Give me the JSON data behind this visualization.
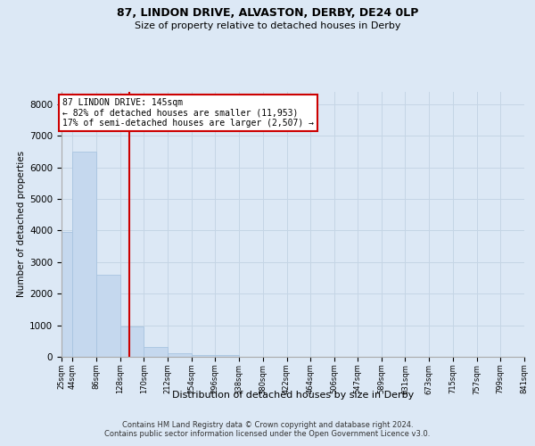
{
  "title1": "87, LINDON DRIVE, ALVASTON, DERBY, DE24 0LP",
  "title2": "Size of property relative to detached houses in Derby",
  "xlabel": "Distribution of detached houses by size in Derby",
  "ylabel": "Number of detached properties",
  "bar_edges": [
    25,
    44,
    86,
    128,
    170,
    212,
    254,
    296,
    338,
    380,
    422,
    464,
    506,
    547,
    589,
    631,
    673,
    715,
    757,
    799,
    841
  ],
  "bar_heights": [
    3950,
    6500,
    2590,
    950,
    310,
    120,
    70,
    50,
    0,
    0,
    0,
    0,
    0,
    0,
    0,
    0,
    0,
    0,
    0,
    0
  ],
  "bar_color": "#c5d8ee",
  "bar_edge_color": "#a8c4e0",
  "property_line_x": 145,
  "property_line_color": "#cc0000",
  "annotation_text": "87 LINDON DRIVE: 145sqm\n← 82% of detached houses are smaller (11,953)\n17% of semi-detached houses are larger (2,507) →",
  "annotation_box_color": "#cc0000",
  "annotation_bg_color": "#ffffff",
  "ylim": [
    0,
    8400
  ],
  "yticks": [
    0,
    1000,
    2000,
    3000,
    4000,
    5000,
    6000,
    7000,
    8000
  ],
  "grid_color": "#c5d5e5",
  "background_color": "#dce8f5",
  "footer_text": "Contains HM Land Registry data © Crown copyright and database right 2024.\nContains public sector information licensed under the Open Government Licence v3.0.",
  "tick_labels": [
    "25sqm",
    "44sqm",
    "86sqm",
    "128sqm",
    "170sqm",
    "212sqm",
    "254sqm",
    "296sqm",
    "338sqm",
    "380sqm",
    "422sqm",
    "464sqm",
    "506sqm",
    "547sqm",
    "589sqm",
    "631sqm",
    "673sqm",
    "715sqm",
    "757sqm",
    "799sqm",
    "841sqm"
  ],
  "title1_fontsize": 9,
  "title2_fontsize": 8,
  "ylabel_fontsize": 7.5,
  "xlabel_fontsize": 8,
  "ytick_fontsize": 7.5,
  "xtick_fontsize": 6,
  "footer_fontsize": 6,
  "annot_fontsize": 7
}
